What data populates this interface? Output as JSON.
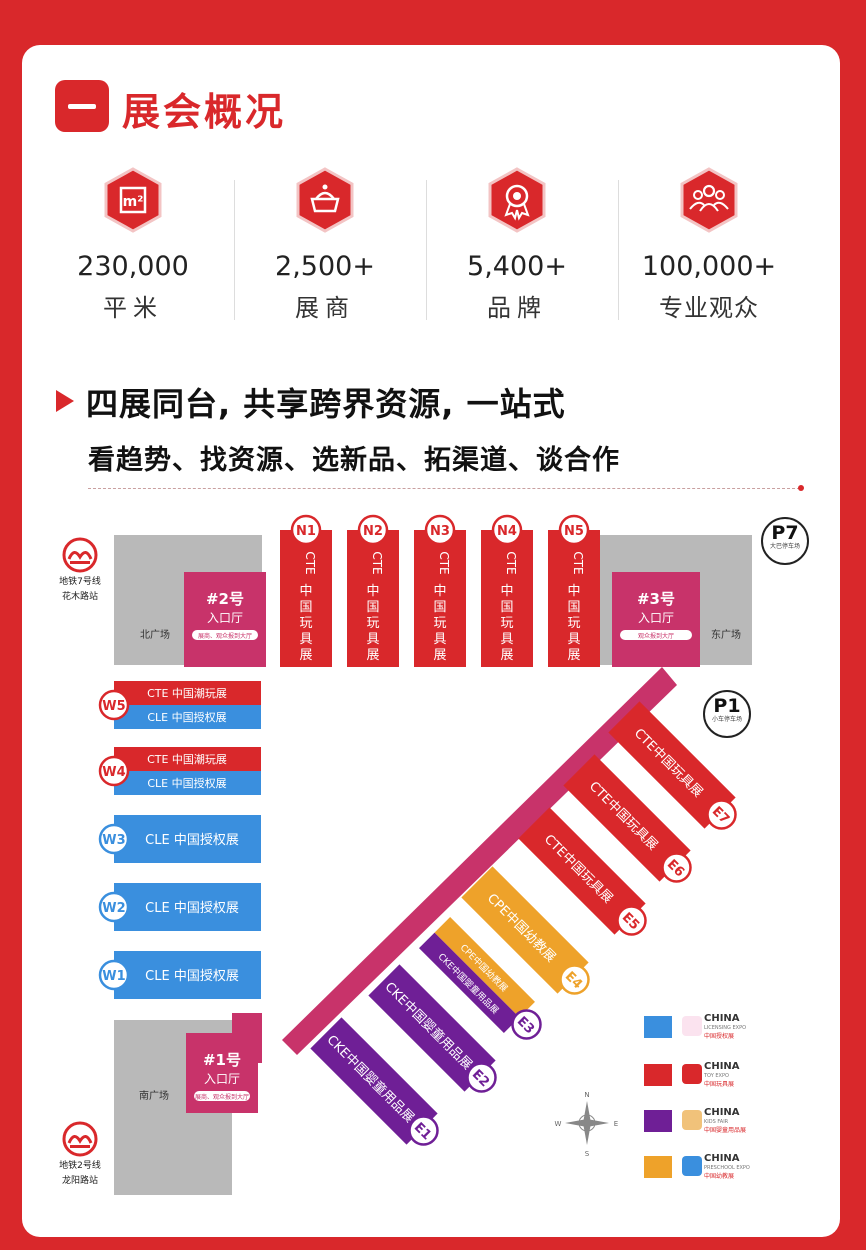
{
  "section": {
    "title": "展会概况"
  },
  "stats": [
    {
      "icon": "area-m2-icon",
      "number": "230,000",
      "label": "平米"
    },
    {
      "icon": "exhibitor-icon",
      "number": "2,500+",
      "label": "展商"
    },
    {
      "icon": "brand-badge-icon",
      "number": "5,400+",
      "label": "品牌"
    },
    {
      "icon": "audience-icon",
      "number": "100,000+",
      "label": "专业观众"
    }
  ],
  "headline": {
    "line1": "四展同台, 共享跨界资源, 一站式",
    "line2": "看趋势、找资源、选新品、拓渠道、谈合作"
  },
  "colors": {
    "red": "#d9282b",
    "blue": "#3a8fde",
    "purple": "#6f1f96",
    "orange": "#eea22a",
    "magenta": "#c8336a",
    "gray": "#b9b9b9"
  },
  "map": {
    "north_halls": [
      {
        "id": "N1",
        "label": "CTE中国玩具展"
      },
      {
        "id": "N2",
        "label": "CTE中国玩具展"
      },
      {
        "id": "N3",
        "label": "CTE中国玩具展"
      },
      {
        "id": "N4",
        "label": "CTE中国玩具展"
      },
      {
        "id": "N5",
        "label": "CTE中国玩具展"
      }
    ],
    "west_halls": [
      {
        "id": "W5",
        "top": "CTE 中国潮玩展",
        "bottom": "CLE 中国授权展"
      },
      {
        "id": "W4",
        "top": "CTE 中国潮玩展",
        "bottom": "CLE 中国授权展"
      },
      {
        "id": "W3",
        "label": "CLE 中国授权展"
      },
      {
        "id": "W2",
        "label": "CLE 中国授权展"
      },
      {
        "id": "W1",
        "label": "CLE 中国授权展"
      }
    ],
    "east_halls": [
      {
        "id": "E7",
        "label": "CTE中国玩具展"
      },
      {
        "id": "E6",
        "label": "CTE中国玩具展"
      },
      {
        "id": "E5",
        "label": "CTE中国玩具展"
      },
      {
        "id": "E4",
        "label": "CPE中国幼教展"
      },
      {
        "id": "E3",
        "label": "CPE中国幼教展",
        "label2": "CKE中国婴童用品展"
      },
      {
        "id": "E2",
        "label": "CKE中国婴童用品展"
      },
      {
        "id": "E1",
        "label": "CKE中国婴童用品展"
      }
    ],
    "entrances": [
      {
        "name": "#2号",
        "sub": "入口厅",
        "note": "展商、观众报到大厅"
      },
      {
        "name": "#3号",
        "sub": "入口厅",
        "note": "观众报到大厅"
      },
      {
        "name": "#1号",
        "sub": "入口厅",
        "note": "展商、观众报到大厅"
      }
    ],
    "plazas": {
      "north": "北广场",
      "east": "东广场",
      "south": "南广场"
    },
    "parking": [
      {
        "id": "P7",
        "note": "大巴停车场"
      },
      {
        "id": "P1",
        "note": "小车停车场"
      }
    ],
    "metro": [
      {
        "line": "地铁7号线",
        "station": "花木路站"
      },
      {
        "line": "地铁2号线",
        "station": "龙阳路站"
      }
    ],
    "compass": {
      "n": "N",
      "s": "S",
      "e": "E",
      "w": "W"
    }
  },
  "legend": [
    {
      "color": "#3a8fde",
      "t1": "CHINA",
      "t2": "LICENSING EXPO",
      "t3": "中国授权展"
    },
    {
      "color": "#d9282b",
      "t1": "CHINA",
      "t2": "TOY EXPO",
      "t3": "中国玩具展"
    },
    {
      "color": "#6f1f96",
      "t1": "CHINA",
      "t2": "KIDS FAIR",
      "t3": "中国婴童用品展"
    },
    {
      "color": "#eea22a",
      "t1": "CHINA",
      "t2": "PRESCHOOL EXPO",
      "t3": "中国幼教展"
    }
  ]
}
